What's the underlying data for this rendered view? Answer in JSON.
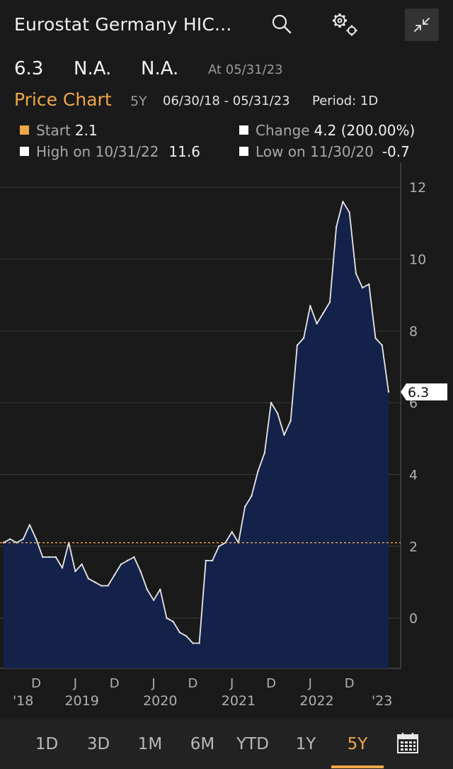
{
  "header": {
    "title": "Eurostat Germany HIC...",
    "icons": [
      "search-icon",
      "settings-icon",
      "collapse-icon"
    ]
  },
  "quote": {
    "last": "6.3",
    "change": "N.A.",
    "change_pct": "N.A.",
    "as_of": "At 05/31/23"
  },
  "price_chart": {
    "title": "Price Chart",
    "span": "5Y",
    "dates": "06/30/18 - 05/31/23",
    "period": "Period: 1D"
  },
  "stats": {
    "start_label": "Start",
    "start_value": "2.1",
    "change_label": "Change",
    "change_value": "4.2 (200.00%)",
    "high_label": "High on 10/31/22",
    "high_value": "11.6",
    "low_label": "Low on 11/30/20",
    "low_value": "-0.7"
  },
  "colors": {
    "accent": "#f0a746",
    "area_fill": "#14224a",
    "line": "#e8e8e8",
    "background": "#1a1a1a"
  },
  "chart_data": {
    "type": "area",
    "ylim": [
      -1.4,
      12.3
    ],
    "yticks": [
      12,
      10,
      8,
      6,
      4,
      2,
      0
    ],
    "reference_line": 2.1,
    "last_value_label": "6.3",
    "x_month_labels": [
      {
        "month": 5,
        "text": "D"
      },
      {
        "month": 11,
        "text": "J"
      },
      {
        "month": 17,
        "text": "D"
      },
      {
        "month": 23,
        "text": "J"
      },
      {
        "month": 29,
        "text": "D"
      },
      {
        "month": 35,
        "text": "J"
      },
      {
        "month": 41,
        "text": "D"
      },
      {
        "month": 47,
        "text": "J"
      },
      {
        "month": 53,
        "text": "D"
      }
    ],
    "x_year_labels": [
      {
        "month": 3,
        "text": "'18"
      },
      {
        "month": 12,
        "text": "2019"
      },
      {
        "month": 24,
        "text": "2020"
      },
      {
        "month": 36,
        "text": "2021"
      },
      {
        "month": 48,
        "text": "2022"
      },
      {
        "month": 58,
        "text": "'23"
      }
    ],
    "x": [
      "2018-06",
      "2018-07",
      "2018-08",
      "2018-09",
      "2018-10",
      "2018-11",
      "2018-12",
      "2019-01",
      "2019-02",
      "2019-03",
      "2019-04",
      "2019-05",
      "2019-06",
      "2019-07",
      "2019-08",
      "2019-09",
      "2019-10",
      "2019-11",
      "2019-12",
      "2020-01",
      "2020-02",
      "2020-03",
      "2020-04",
      "2020-05",
      "2020-06",
      "2020-07",
      "2020-08",
      "2020-09",
      "2020-10",
      "2020-11",
      "2020-12",
      "2021-01",
      "2021-02",
      "2021-03",
      "2021-04",
      "2021-05",
      "2021-06",
      "2021-07",
      "2021-08",
      "2021-09",
      "2021-10",
      "2021-11",
      "2021-12",
      "2022-01",
      "2022-02",
      "2022-03",
      "2022-04",
      "2022-05",
      "2022-06",
      "2022-07",
      "2022-08",
      "2022-09",
      "2022-10",
      "2022-11",
      "2022-12",
      "2023-01",
      "2023-02",
      "2023-03",
      "2023-04",
      "2023-05"
    ],
    "values": [
      2.1,
      2.2,
      2.1,
      2.2,
      2.6,
      2.2,
      1.7,
      1.7,
      1.7,
      1.4,
      2.1,
      1.3,
      1.5,
      1.1,
      1.0,
      0.9,
      0.9,
      1.2,
      1.5,
      1.6,
      1.7,
      1.3,
      0.8,
      0.5,
      0.8,
      0.0,
      -0.1,
      -0.4,
      -0.5,
      -0.7,
      -0.7,
      1.6,
      1.6,
      2.0,
      2.1,
      2.4,
      2.1,
      3.1,
      3.4,
      4.1,
      4.6,
      6.0,
      5.7,
      5.1,
      5.5,
      7.6,
      7.8,
      8.7,
      8.2,
      8.5,
      8.8,
      10.9,
      11.6,
      11.3,
      9.6,
      9.2,
      9.3,
      7.8,
      7.6,
      6.3
    ]
  },
  "tabs": [
    "1D",
    "3D",
    "1M",
    "6M",
    "YTD",
    "1Y",
    "5Y"
  ],
  "active_tab": "5Y"
}
